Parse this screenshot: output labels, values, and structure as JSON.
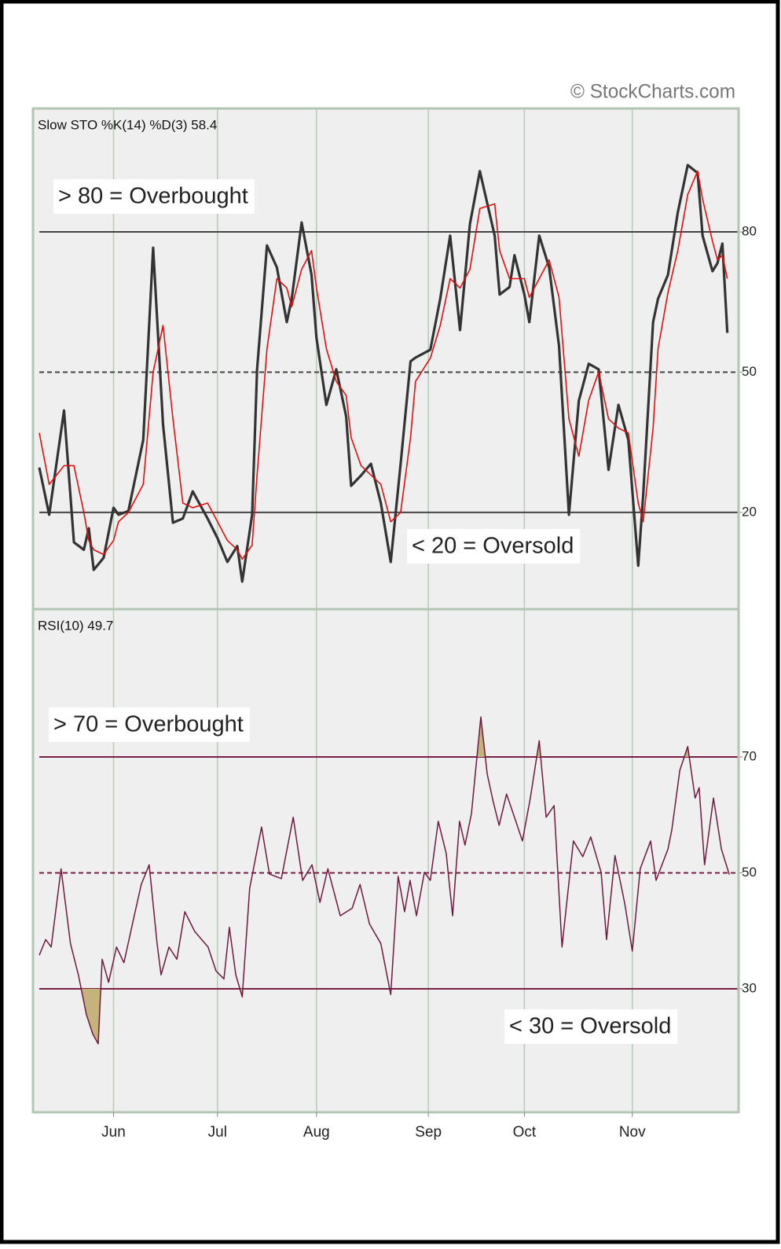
{
  "watermark": "© StockCharts.com",
  "x_axis": {
    "xlim": [
      -1.27,
      141.27
    ],
    "xticks": [
      {
        "value": 15,
        "label": "Jun"
      },
      {
        "value": 36,
        "label": "Jul"
      },
      {
        "value": 56,
        "label": "Aug"
      },
      {
        "value": 78.6,
        "label": "Sep"
      },
      {
        "value": 98,
        "label": "Oct"
      },
      {
        "value": 119.8,
        "label": "Nov"
      }
    ]
  },
  "chart_data": [
    {
      "type": "line",
      "title": "Slow STO %K(14) %D(3) 58.4",
      "ylim": [
        -0.7,
        106.4
      ],
      "yticks": [
        20,
        50,
        80
      ],
      "solid_lines": [
        20,
        80
      ],
      "dashed_lines": [
        50
      ],
      "line_color": "#444444",
      "annotations": [
        "> 80 = Overbought",
        "< 20 = Oversold"
      ],
      "x": [
        0,
        2,
        5,
        7,
        9,
        10,
        11,
        13,
        15,
        16,
        18,
        21,
        23,
        25,
        27,
        29,
        31,
        34,
        36,
        38,
        40,
        41,
        43,
        44,
        46,
        48,
        50,
        51,
        53,
        55,
        56,
        58,
        60,
        62,
        63,
        65,
        67,
        69,
        71,
        73,
        75,
        76,
        79,
        81,
        83,
        85,
        87,
        89,
        92,
        93,
        95,
        96,
        98,
        99,
        101,
        103,
        105,
        107,
        109,
        111,
        113,
        115,
        117,
        119,
        121,
        122,
        124,
        125,
        127,
        129,
        131,
        133,
        134,
        136,
        137,
        138,
        139
      ],
      "series": [
        {
          "color": "#333333",
          "width": 3.2,
          "values": [
            29.6,
            19.5,
            41.8,
            13.6,
            12,
            16.6,
            7.7,
            10.3,
            21,
            19.5,
            20.3,
            35.5,
            76.6,
            38.8,
            17.8,
            18.7,
            24.5,
            18.7,
            14.5,
            9.4,
            12.8,
            5.2,
            19.5,
            50.6,
            77.1,
            72.4,
            60.7,
            65.7,
            82,
            70.8,
            57.3,
            43,
            50.6,
            40.5,
            25.7,
            27.9,
            30.4,
            22,
            9.4,
            30.4,
            52.3,
            53.1,
            54.8,
            65.7,
            79.2,
            59,
            81.7,
            93,
            79.2,
            66.6,
            68.2,
            75,
            66.6,
            60.7,
            79.2,
            72.4,
            55.6,
            19.5,
            43.9,
            51.8,
            50.6,
            29.1,
            43,
            35.5,
            8.6,
            23.7,
            60.7,
            65.7,
            70.8,
            84.2,
            94.3,
            92.6,
            79.2,
            71.6,
            73.3,
            77.5,
            58.4
          ]
        },
        {
          "color": "#e01010",
          "width": 1.6,
          "values": [
            37,
            26,
            30,
            30,
            20,
            14,
            12,
            11,
            14,
            18,
            20,
            26,
            50,
            60,
            40,
            22,
            21,
            22,
            18,
            14,
            12,
            10,
            13,
            28,
            55,
            70,
            68,
            64,
            72,
            76,
            68,
            55,
            48,
            45,
            36,
            30,
            28,
            26,
            18,
            20,
            36,
            48,
            53,
            60,
            70,
            68,
            72,
            85,
            86,
            76,
            70,
            70,
            70,
            66,
            70,
            74,
            66,
            40,
            32,
            44,
            50,
            40,
            38,
            37,
            22,
            18,
            38,
            55,
            67,
            76,
            88,
            93,
            87,
            78,
            74,
            75,
            70
          ]
        }
      ]
    },
    {
      "type": "line",
      "title": "RSI(10) 49.7",
      "ylim": [
        8.7,
        95.5
      ],
      "yticks": [
        30,
        50,
        70
      ],
      "solid_lines": [
        30,
        70
      ],
      "dashed_lines": [
        50
      ],
      "line_color": "#7a1f45",
      "shade_below": 30,
      "shade_above": 70,
      "shade_color": "#c4b47c",
      "annotations": [
        "> 70 = Overbought",
        "< 30 = Oversold"
      ],
      "x": [
        0,
        1.3,
        2.4,
        4.4,
        6.3,
        7.9,
        9.5,
        10.8,
        11.9,
        12.7,
        14.0,
        15.6,
        17.1,
        19.0,
        20.6,
        22.2,
        23.8,
        24.6,
        26.2,
        27.8,
        29.4,
        31.4,
        34.1,
        35.7,
        37.3,
        38.4,
        39.7,
        41.0,
        42.5,
        44.9,
        46.5,
        48.9,
        51.3,
        53.2,
        55.1,
        56.7,
        58.3,
        60.8,
        63.2,
        64.8,
        66.7,
        69.0,
        71.0,
        72.5,
        73.8,
        74.9,
        76.2,
        77.8,
        79.0,
        80.6,
        82.2,
        83.5,
        84.9,
        86.0,
        87.3,
        89.2,
        90.5,
        91.7,
        92.9,
        94.4,
        96.0,
        97.6,
        99.2,
        101.0,
        102.4,
        104.0,
        105.6,
        107.9,
        109.8,
        111.4,
        113.5,
        114.6,
        116.3,
        118.3,
        119.8,
        121.4,
        123.5,
        124.6,
        127.0,
        127.8,
        129.4,
        131.0,
        132.5,
        133.3,
        134.4,
        136.2,
        137.8,
        139.4
      ],
      "series": [
        {
          "color": "#6e1a40",
          "width": 1.5,
          "values": [
            35.8,
            38.5,
            37.2,
            50.7,
            37.8,
            32.4,
            25.6,
            22.2,
            20.5,
            35.1,
            31.1,
            37.2,
            34.5,
            41.9,
            48,
            51.4,
            37.8,
            32.4,
            37.2,
            35.1,
            43.3,
            39.9,
            37.2,
            33.1,
            31.7,
            40.6,
            32.4,
            28.6,
            47.3,
            57.9,
            49.8,
            49,
            59.6,
            48.7,
            51.4,
            44.9,
            50.7,
            42.6,
            43.9,
            48,
            41.2,
            37.8,
            29,
            49.4,
            43.3,
            48.7,
            42.6,
            50.1,
            48.7,
            58.9,
            53.4,
            42.6,
            58.9,
            54.8,
            60.2,
            76.9,
            67,
            62.3,
            58.2,
            63.6,
            59.6,
            55.5,
            62.9,
            72.8,
            59.6,
            61.6,
            37.2,
            55.5,
            52.8,
            56.2,
            50.1,
            38.5,
            53,
            44.6,
            36.5,
            50.7,
            55.5,
            48.7,
            54.1,
            57.5,
            67.7,
            71.8,
            62.9,
            64.7,
            51.4,
            62.9,
            54.1,
            49.7
          ]
        }
      ]
    }
  ]
}
